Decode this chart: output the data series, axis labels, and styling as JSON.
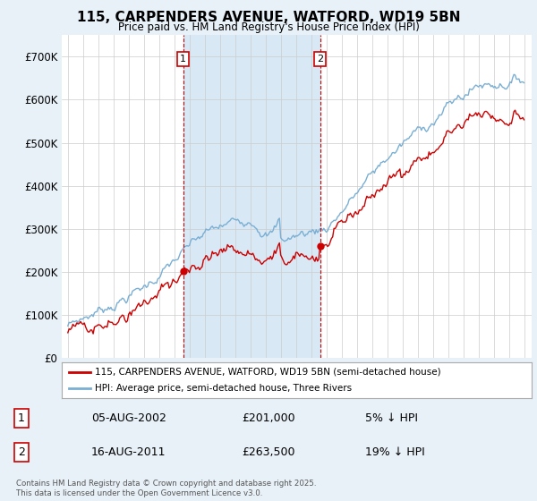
{
  "title": "115, CARPENDERS AVENUE, WATFORD, WD19 5BN",
  "subtitle": "Price paid vs. HM Land Registry's House Price Index (HPI)",
  "ylim": [
    0,
    750000
  ],
  "yticks": [
    0,
    100000,
    200000,
    300000,
    400000,
    500000,
    600000,
    700000
  ],
  "ytick_labels": [
    "£0",
    "£100K",
    "£200K",
    "£300K",
    "£400K",
    "£500K",
    "£600K",
    "£700K"
  ],
  "hpi_color": "#7aafd4",
  "price_color": "#cc0000",
  "fill_color": "#d8e8f5",
  "sale1_year": 2002.583,
  "sale1_price": 201000,
  "sale2_year": 2011.583,
  "sale2_price": 263500,
  "legend_price_label": "115, CARPENDERS AVENUE, WATFORD, WD19 5BN (semi-detached house)",
  "legend_hpi_label": "HPI: Average price, semi-detached house, Three Rivers",
  "table_rows": [
    {
      "num": "1",
      "date": "05-AUG-2002",
      "price": "£201,000",
      "note": "5% ↓ HPI"
    },
    {
      "num": "2",
      "date": "16-AUG-2011",
      "price": "£263,500",
      "note": "19% ↓ HPI"
    }
  ],
  "footer": "Contains HM Land Registry data © Crown copyright and database right 2025.\nThis data is licensed under the Open Government Licence v3.0.",
  "background_color": "#e8f0f8",
  "plot_bg_color": "#ffffff",
  "grid_color": "#cccccc"
}
